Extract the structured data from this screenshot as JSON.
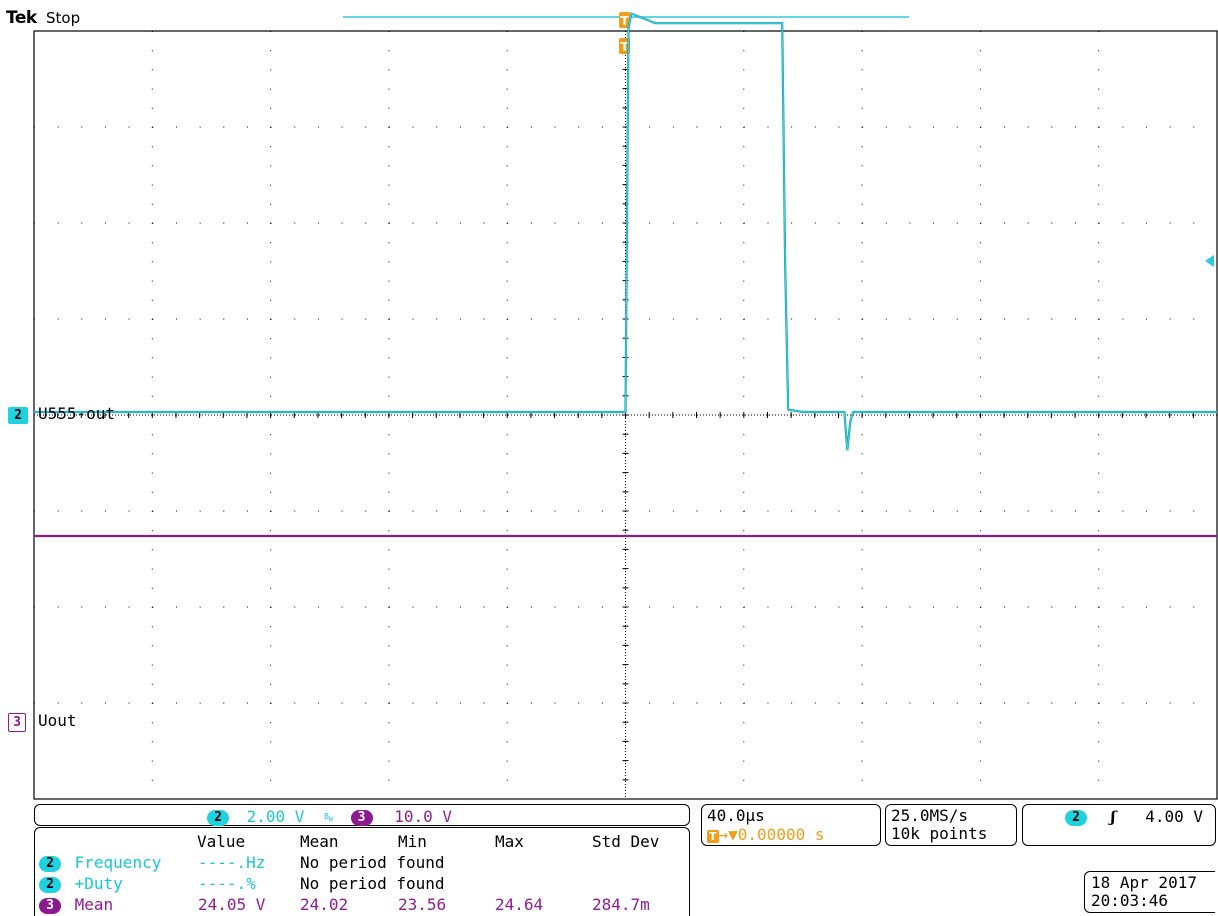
{
  "header": {
    "brand": "Tek",
    "acq_state": "Stop"
  },
  "channels": {
    "ch2": {
      "number": "2",
      "label": "U555-out",
      "scale": "2.00 V",
      "color": "#1fd2e0",
      "bw_limit_icon": "bandwidth-limit-icon"
    },
    "ch3": {
      "number": "3",
      "label": "Uout",
      "scale": "10.0 V",
      "color": "#8b1a8f"
    }
  },
  "horizontal": {
    "timebase": "40.0µs",
    "trigger_delay": "0.00000 s",
    "sample_rate": "25.0MS/s",
    "record_length": "10k points"
  },
  "trigger": {
    "source": "2",
    "slope_icon": "rising-edge-icon",
    "level": "4.00 V",
    "color": "#f39c18"
  },
  "measurements": {
    "headers": [
      "Value",
      "Mean",
      "Min",
      "Max",
      "Std Dev"
    ],
    "rows": [
      {
        "source": "2",
        "name": "Frequency",
        "value": "----.Hz",
        "note": "No period found"
      },
      {
        "source": "2",
        "name": "+Duty",
        "value": "----.%",
        "note": "No period found"
      },
      {
        "source": "3",
        "name": "Mean",
        "value": "24.05 V",
        "mean": "24.02",
        "min": "23.56",
        "max": "24.64",
        "std": "284.7m"
      }
    ]
  },
  "datetime": {
    "date": "18 Apr 2017",
    "time": "20:03:46"
  },
  "chart_data": {
    "type": "line",
    "grid": true,
    "divisions": {
      "x": 10,
      "y": 8
    },
    "x_unit": "µs",
    "x_per_div": 40,
    "xlim": [
      -200,
      200
    ],
    "series": [
      {
        "name": "U555-out",
        "volts_per_div": 2.0,
        "color": "#1fd2e0",
        "x": [
          -200,
          -0.5,
          0,
          1,
          2,
          10,
          30,
          53,
          54,
          55,
          60,
          74,
          75,
          76,
          77,
          90,
          100,
          120,
          200
        ],
        "y": [
          0,
          0,
          0,
          8.0,
          8.3,
          8.1,
          8.1,
          8.1,
          3.0,
          0.05,
          0,
          0,
          -0.8,
          -0.2,
          0,
          0,
          0,
          0,
          0
        ]
      },
      {
        "name": "Uout",
        "volts_per_div": 10.0,
        "color": "#8b1a8f",
        "x": [
          -200,
          200
        ],
        "y": [
          24.05,
          24.05
        ]
      }
    ]
  }
}
